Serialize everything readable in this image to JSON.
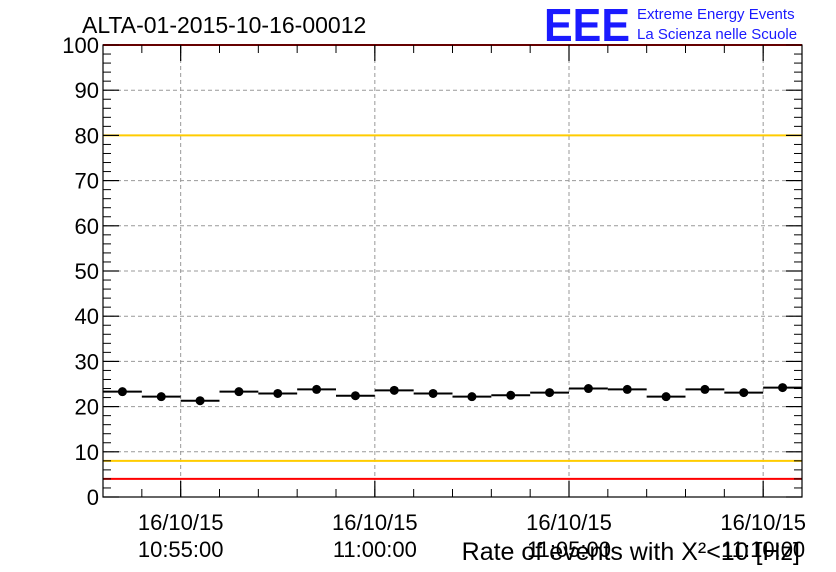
{
  "chart_data": {
    "type": "scatter",
    "title": "ALTA-01-2015-10-16-00012",
    "xlabel": "Rate of events with X²<10 [Hz]",
    "ylabel": "",
    "ylim": [
      0,
      100
    ],
    "yticks": [
      0,
      10,
      20,
      30,
      40,
      50,
      60,
      70,
      80,
      90,
      100
    ],
    "xticks": [
      {
        "date": "16/10/15",
        "time": "10:55:00"
      },
      {
        "date": "16/10/15",
        "time": "11:00:00"
      },
      {
        "date": "16/10/15",
        "time": "11:05:00"
      },
      {
        "date": "16/10/15",
        "time": "11:10:00"
      }
    ],
    "grid": true,
    "series": [
      {
        "points": [
          {
            "x": "10:53:30",
            "y": 23.3
          },
          {
            "x": "10:54:30",
            "y": 22.2
          },
          {
            "x": "10:55:30",
            "y": 21.3
          },
          {
            "x": "10:56:30",
            "y": 23.3
          },
          {
            "x": "10:57:30",
            "y": 22.9
          },
          {
            "x": "10:58:30",
            "y": 23.8
          },
          {
            "x": "10:59:30",
            "y": 22.4
          },
          {
            "x": "11:00:30",
            "y": 23.6
          },
          {
            "x": "11:01:30",
            "y": 22.9
          },
          {
            "x": "11:02:30",
            "y": 22.2
          },
          {
            "x": "11:03:30",
            "y": 22.5
          },
          {
            "x": "11:04:30",
            "y": 23.1
          },
          {
            "x": "11:05:30",
            "y": 24.0
          },
          {
            "x": "11:06:30",
            "y": 23.8
          },
          {
            "x": "11:07:30",
            "y": 22.2
          },
          {
            "x": "11:08:30",
            "y": 23.8
          },
          {
            "x": "11:09:30",
            "y": 23.1
          },
          {
            "x": "11:10:30",
            "y": 24.2
          }
        ],
        "bin_width_minutes": 1,
        "color": "#000000"
      }
    ],
    "reference_lines": [
      {
        "y": 100,
        "color": "#ff0000"
      },
      {
        "y": 80,
        "color": "#ffcc00"
      },
      {
        "y": 8,
        "color": "#ffcc00"
      },
      {
        "y": 4,
        "color": "#ff0000"
      }
    ]
  },
  "logo": {
    "mark": "EEE",
    "line1": "Extreme Energy Events",
    "line2": "La Scienza nelle Scuole",
    "color": "#1a1aff"
  }
}
